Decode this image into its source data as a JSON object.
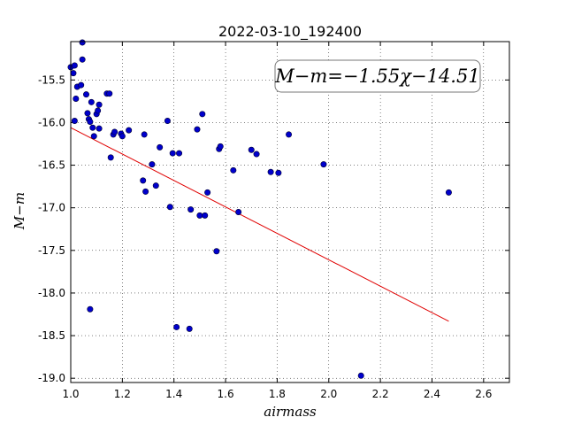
{
  "chart_data": {
    "type": "scatter",
    "title": "2022-03-10_192400",
    "xlabel": "airmass",
    "ylabel": "M−m",
    "xlim": [
      1.0,
      2.7
    ],
    "ylim": [
      -19.05,
      -15.05
    ],
    "xticks": [
      "1.0",
      "1.2",
      "1.4",
      "1.6",
      "1.8",
      "2.0",
      "2.2",
      "2.4",
      "2.6"
    ],
    "yticks": [
      "-15.5",
      "-16.0",
      "-16.5",
      "-17.0",
      "-17.5",
      "-18.0",
      "-18.5",
      "-19.0"
    ],
    "grid": true,
    "annotation": "M−m=−1.55χ−14.51",
    "colors": {
      "points": "#0000cc",
      "fit_line": "#e00000"
    },
    "points": [
      {
        "x": 1.0,
        "y": -15.35
      },
      {
        "x": 1.01,
        "y": -15.42
      },
      {
        "x": 1.015,
        "y": -15.33
      },
      {
        "x": 1.02,
        "y": -15.72
      },
      {
        "x": 1.025,
        "y": -15.58
      },
      {
        "x": 1.04,
        "y": -15.56
      },
      {
        "x": 1.045,
        "y": -15.06
      },
      {
        "x": 1.045,
        "y": -15.26
      },
      {
        "x": 1.06,
        "y": -15.67
      },
      {
        "x": 1.015,
        "y": -15.98
      },
      {
        "x": 1.065,
        "y": -15.89
      },
      {
        "x": 1.07,
        "y": -15.96
      },
      {
        "x": 1.075,
        "y": -15.99
      },
      {
        "x": 1.08,
        "y": -15.76
      },
      {
        "x": 1.085,
        "y": -16.06
      },
      {
        "x": 1.09,
        "y": -16.16
      },
      {
        "x": 1.1,
        "y": -15.9
      },
      {
        "x": 1.105,
        "y": -15.86
      },
      {
        "x": 1.11,
        "y": -15.79
      },
      {
        "x": 1.11,
        "y": -16.07
      },
      {
        "x": 1.14,
        "y": -15.66
      },
      {
        "x": 1.15,
        "y": -15.66
      },
      {
        "x": 1.155,
        "y": -16.41
      },
      {
        "x": 1.165,
        "y": -16.14
      },
      {
        "x": 1.17,
        "y": -16.11
      },
      {
        "x": 1.195,
        "y": -16.13
      },
      {
        "x": 1.2,
        "y": -16.16
      },
      {
        "x": 1.225,
        "y": -16.09
      },
      {
        "x": 1.28,
        "y": -16.68
      },
      {
        "x": 1.285,
        "y": -16.14
      },
      {
        "x": 1.29,
        "y": -16.81
      },
      {
        "x": 1.315,
        "y": -16.49
      },
      {
        "x": 1.33,
        "y": -16.74
      },
      {
        "x": 1.345,
        "y": -16.29
      },
      {
        "x": 1.375,
        "y": -15.98
      },
      {
        "x": 1.385,
        "y": -16.99
      },
      {
        "x": 1.395,
        "y": -16.36
      },
      {
        "x": 1.42,
        "y": -16.36
      },
      {
        "x": 1.465,
        "y": -17.02
      },
      {
        "x": 1.49,
        "y": -16.08
      },
      {
        "x": 1.5,
        "y": -17.09
      },
      {
        "x": 1.51,
        "y": -15.9
      },
      {
        "x": 1.52,
        "y": -17.09
      },
      {
        "x": 1.53,
        "y": -16.82
      },
      {
        "x": 1.565,
        "y": -17.51
      },
      {
        "x": 1.575,
        "y": -16.31
      },
      {
        "x": 1.58,
        "y": -16.28
      },
      {
        "x": 1.63,
        "y": -16.56
      },
      {
        "x": 1.65,
        "y": -17.05
      },
      {
        "x": 1.7,
        "y": -16.32
      },
      {
        "x": 1.72,
        "y": -16.37
      },
      {
        "x": 1.775,
        "y": -16.58
      },
      {
        "x": 1.805,
        "y": -16.59
      },
      {
        "x": 1.845,
        "y": -16.14
      },
      {
        "x": 1.98,
        "y": -16.49
      },
      {
        "x": 1.075,
        "y": -18.19
      },
      {
        "x": 1.41,
        "y": -18.4
      },
      {
        "x": 1.46,
        "y": -18.42
      },
      {
        "x": 2.125,
        "y": -18.97
      },
      {
        "x": 2.465,
        "y": -16.82
      }
    ],
    "fit_line": {
      "slope": -1.55,
      "intercept": -14.51,
      "x_range": [
        1.0,
        2.465
      ]
    }
  }
}
